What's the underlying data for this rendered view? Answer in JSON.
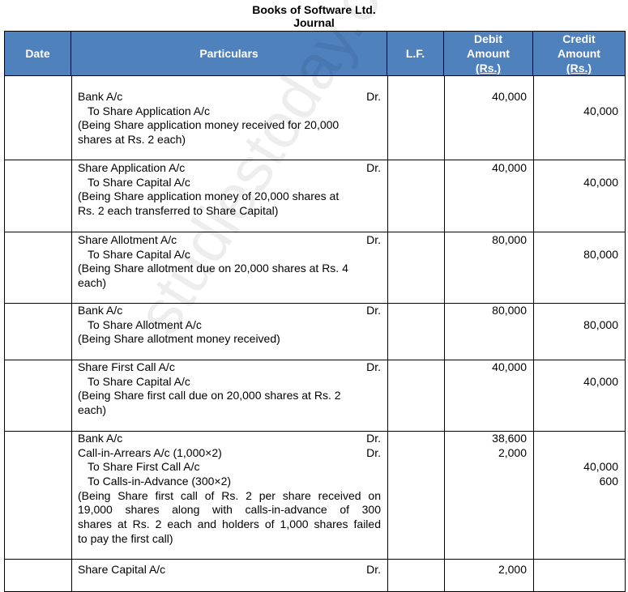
{
  "title": "Books of Software Ltd.",
  "subtitle": "Journal",
  "header_color": "#4f81bd",
  "watermark": "studiestoday.com",
  "columns": [
    "Date",
    "Particulars",
    "L.F.",
    "Debit\nAmount\n(Rs.)",
    "Credit\nAmount\n(Rs.)"
  ],
  "columns_parts": {
    "debit": [
      "Debit",
      "Amount",
      "(Rs.)"
    ],
    "credit": [
      "Credit",
      "Amount",
      "(Rs.)"
    ]
  },
  "entries": [
    {
      "lines": [
        {
          "text": "Bank A/c",
          "dr": "Dr.",
          "debit": "40,000"
        },
        {
          "text": "To Share Application A/c",
          "indent": true,
          "credit": "40,000"
        },
        {
          "text": "(Being Share application money received for 20,000"
        },
        {
          "text": "shares at Rs. 2 each)"
        }
      ]
    },
    {
      "lines": [
        {
          "text": "Share Application A/c",
          "dr": "Dr.",
          "debit": "40,000"
        },
        {
          "text": "To Share Capital A/c",
          "indent": true,
          "credit": "40,000"
        },
        {
          "text": "(Being Share application money of 20,000 shares at"
        },
        {
          "text": "Rs. 2 each transferred to Share Capital)"
        }
      ]
    },
    {
      "lines": [
        {
          "text": "Share Allotment A/c",
          "dr": "Dr.",
          "debit": "80,000"
        },
        {
          "text": "To Share Capital A/c",
          "indent": true,
          "credit": "80,000"
        },
        {
          "text": "(Being Share allotment due on 20,000 shares at Rs. 4"
        },
        {
          "text": "each)"
        }
      ]
    },
    {
      "lines": [
        {
          "text": "Bank A/c",
          "dr": "Dr.",
          "debit": "80,000"
        },
        {
          "text": "To Share Allotment A/c",
          "indent": true,
          "credit": "80,000"
        },
        {
          "text": "(Being Share allotment money received)"
        }
      ]
    },
    {
      "lines": [
        {
          "text": "Share First Call A/c",
          "dr": "Dr.",
          "debit": "40,000"
        },
        {
          "text": "To Share Capital A/c",
          "indent": true,
          "credit": "40,000"
        },
        {
          "text": "(Being Share first call due on 20,000 shares at Rs. 2"
        },
        {
          "text": "each)"
        }
      ]
    },
    {
      "lines": [
        {
          "text": "Bank A/c",
          "dr": "Dr.",
          "debit": "38,600"
        },
        {
          "text": "Call-in-Arrears A/c (1,000×2)",
          "dr": "Dr.",
          "debit": "2,000"
        },
        {
          "text": "To Share First Call A/c",
          "indent": true,
          "credit": "40,000"
        },
        {
          "text": "To Calls-in-Advance (300×2)",
          "indent": true,
          "credit": "600"
        },
        {
          "text": "(Being Share first call of Rs. 2 per share received on",
          "justify": true
        },
        {
          "text": "19,000 shares along with calls-in-advance of 300",
          "justify": true
        },
        {
          "text": "shares at Rs. 2 each and holders of 1,000 shares failed",
          "justify": true
        },
        {
          "text": "to pay the first call)"
        }
      ]
    },
    {
      "lines": [
        {
          "text": "Share Capital A/c",
          "dr": "Dr.",
          "debit": "2,000"
        }
      ]
    }
  ]
}
